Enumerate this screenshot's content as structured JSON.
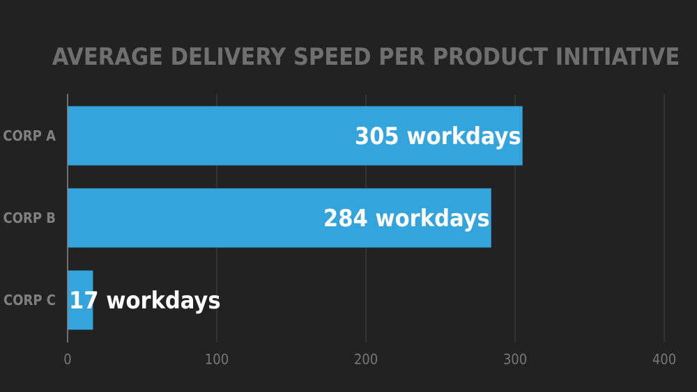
{
  "chart_data": {
    "type": "bar",
    "orientation": "horizontal",
    "title": "AVERAGE DELIVERY SPEED PER PRODUCT INITIATIVE",
    "categories": [
      "CORP A",
      "CORP B",
      "CORP C"
    ],
    "values": [
      305,
      284,
      17
    ],
    "data_labels": [
      "305 workdays",
      "284 workdays",
      "17 workdays"
    ],
    "xlim": [
      0,
      400
    ],
    "x_ticks": [
      0,
      100,
      200,
      300,
      400
    ],
    "x_tick_labels": [
      "0",
      "100",
      "200",
      "300",
      "400"
    ],
    "xlabel": "",
    "ylabel": "",
    "grid": "vertical",
    "legend": "none",
    "colors": {
      "background": "#222222",
      "bar": "#33a4dc",
      "grid": "#444444",
      "title": "#6f6f6f",
      "category_label": "#808080",
      "tick_label": "#777777",
      "data_label": "#ffffff"
    }
  }
}
